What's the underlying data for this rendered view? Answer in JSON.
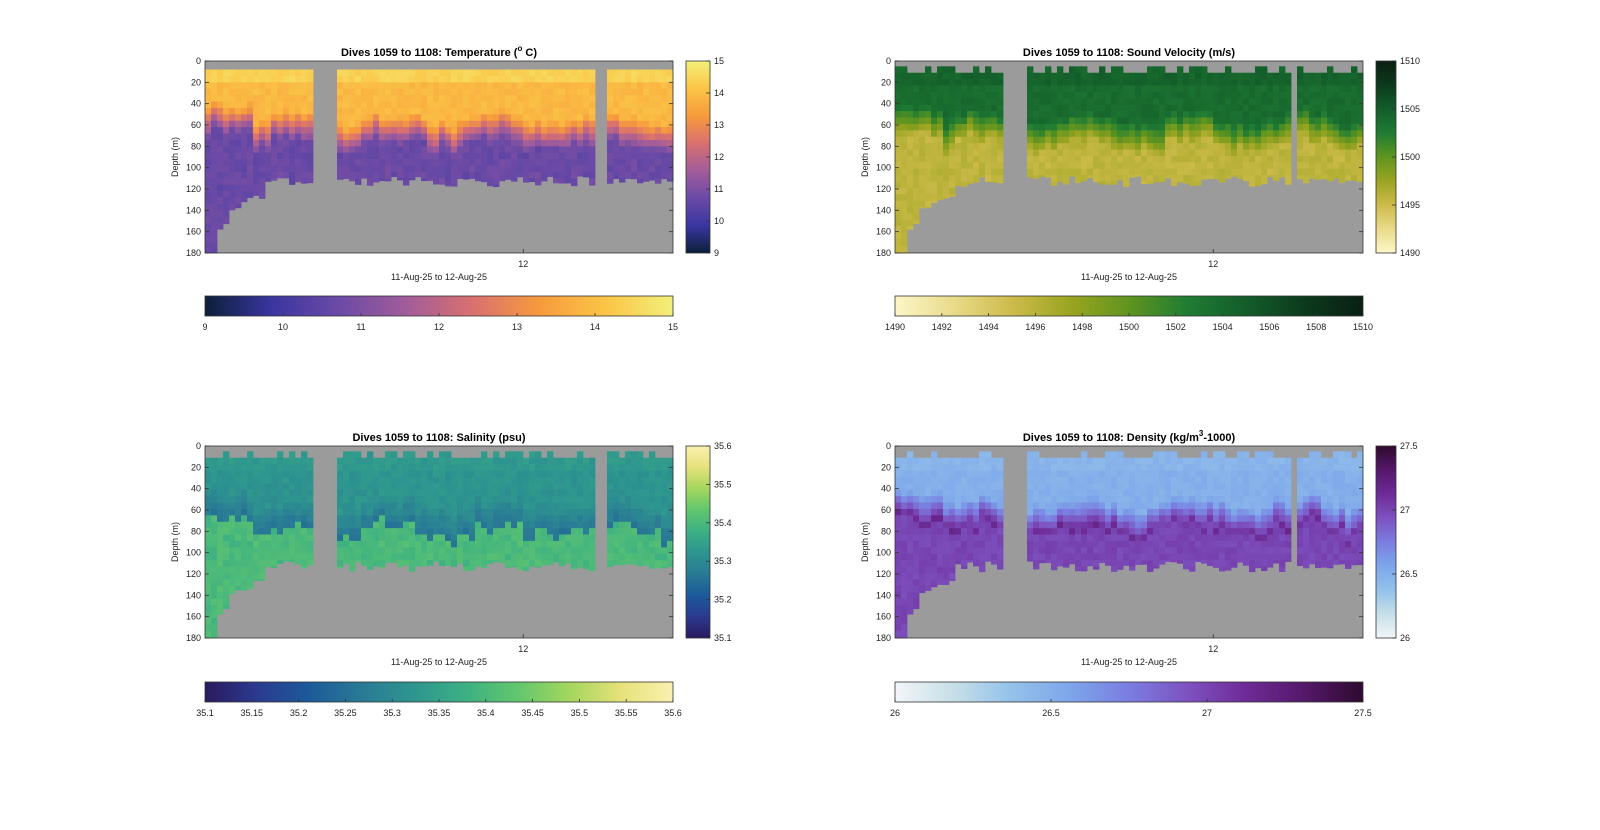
{
  "chart_data": [
    {
      "type": "heatmap",
      "title": "Dives 1059 to 1108: Temperature (",
      "title_sup": "o",
      "title_suffix": " C)",
      "xlabel": "11-Aug-25 to 12-Aug-25",
      "ylabel": "Depth (m)",
      "x_tick_labels": [
        "12"
      ],
      "y_ticks": [
        0,
        20,
        40,
        60,
        80,
        100,
        120,
        140,
        160,
        180
      ],
      "ylim": [
        0,
        180
      ],
      "colorbar_range": [
        9,
        15
      ],
      "colorbar_ticks": [
        9,
        10,
        11,
        12,
        13,
        14,
        15
      ],
      "h_colorbar_ticks": [
        "9",
        "10",
        "11",
        "12",
        "13",
        "14",
        "15"
      ],
      "colormap": [
        "#0b1f3a",
        "#3a36a0",
        "#6b4aa6",
        "#a15c9a",
        "#d9706f",
        "#f79a3c",
        "#fbc546",
        "#f2f07a"
      ],
      "background_color": "#9b9b9b",
      "layers": {
        "surface": 14.4,
        "upper": 13.9,
        "thermocline": 11.9,
        "deep": 10.6
      }
    },
    {
      "type": "heatmap",
      "title": "Dives 1059 to 1108: Sound Velocity (m/s)",
      "title_sup": "",
      "title_suffix": "",
      "xlabel": "11-Aug-25 to 12-Aug-25",
      "ylabel": "Depth (m)",
      "x_tick_labels": [
        "12"
      ],
      "y_ticks": [
        0,
        20,
        40,
        60,
        80,
        100,
        120,
        140,
        160,
        180
      ],
      "ylim": [
        0,
        180
      ],
      "colorbar_range": [
        1490,
        1510
      ],
      "colorbar_ticks": [
        1490,
        1495,
        1500,
        1505,
        1510
      ],
      "h_colorbar_ticks": [
        "1490",
        "1492",
        "1494",
        "1496",
        "1498",
        "1500",
        "1502",
        "1504",
        "1506",
        "1508",
        "1510"
      ],
      "colormap": [
        "#fdf6c8",
        "#e9db8a",
        "#cdbb4a",
        "#9aa421",
        "#5f941f",
        "#1f7c33",
        "#135d2a",
        "#0c3a1d",
        "#0a1f12"
      ],
      "background_color": "#9b9b9b",
      "layers": {
        "surface": 1504.5,
        "upper": 1503.8,
        "thermocline": 1499.0,
        "deep": 1495.5
      }
    },
    {
      "type": "heatmap",
      "title": "Dives 1059 to 1108: Salinity (psu)",
      "title_sup": "",
      "title_suffix": "",
      "xlabel": "11-Aug-25 to 12-Aug-25",
      "ylabel": "Depth (m)",
      "x_tick_labels": [
        "12"
      ],
      "y_ticks": [
        0,
        20,
        40,
        60,
        80,
        100,
        120,
        140,
        160,
        180
      ],
      "ylim": [
        0,
        180
      ],
      "colorbar_range": [
        35.1,
        35.6
      ],
      "colorbar_ticks": [
        35.1,
        35.2,
        35.3,
        35.4,
        35.5,
        35.6
      ],
      "h_colorbar_ticks": [
        "35.1",
        "35.15",
        "35.2",
        "35.25",
        "35.3",
        "35.35",
        "35.4",
        "35.45",
        "35.5",
        "35.55",
        "35.6"
      ],
      "colormap": [
        "#2a1a5e",
        "#2b3a8f",
        "#1c5a9a",
        "#297a95",
        "#2e958f",
        "#3cb083",
        "#62c66e",
        "#a3d65e",
        "#e6e27a",
        "#fbf0b0"
      ],
      "background_color": "#9b9b9b",
      "layers": {
        "surface": 35.33,
        "upper": 35.32,
        "thermocline": 35.28,
        "deep": 35.41
      }
    },
    {
      "type": "heatmap",
      "title": "Dives 1059 to 1108: Density (kg/m",
      "title_sup": "3",
      "title_suffix": "-1000)",
      "xlabel": "11-Aug-25 to 12-Aug-25",
      "ylabel": "Depth (m)",
      "x_tick_labels": [
        "12"
      ],
      "y_ticks": [
        0,
        20,
        40,
        60,
        80,
        100,
        120,
        140,
        160,
        180
      ],
      "ylim": [
        0,
        180
      ],
      "colorbar_range": [
        26,
        27.5
      ],
      "colorbar_ticks": [
        26,
        26.5,
        27,
        27.5
      ],
      "h_colorbar_ticks": [
        "26",
        "26.5",
        "27",
        "27.5"
      ],
      "colormap": [
        "#f2f6f8",
        "#c6dfe8",
        "#93c1ea",
        "#7da6ea",
        "#7b7de0",
        "#7d52c0",
        "#6e2b97",
        "#54186a",
        "#2e0a2e"
      ],
      "background_color": "#9b9b9b",
      "layers": {
        "surface": 26.46,
        "upper": 26.5,
        "thermocline": 26.92,
        "deep": 27.0
      }
    }
  ]
}
